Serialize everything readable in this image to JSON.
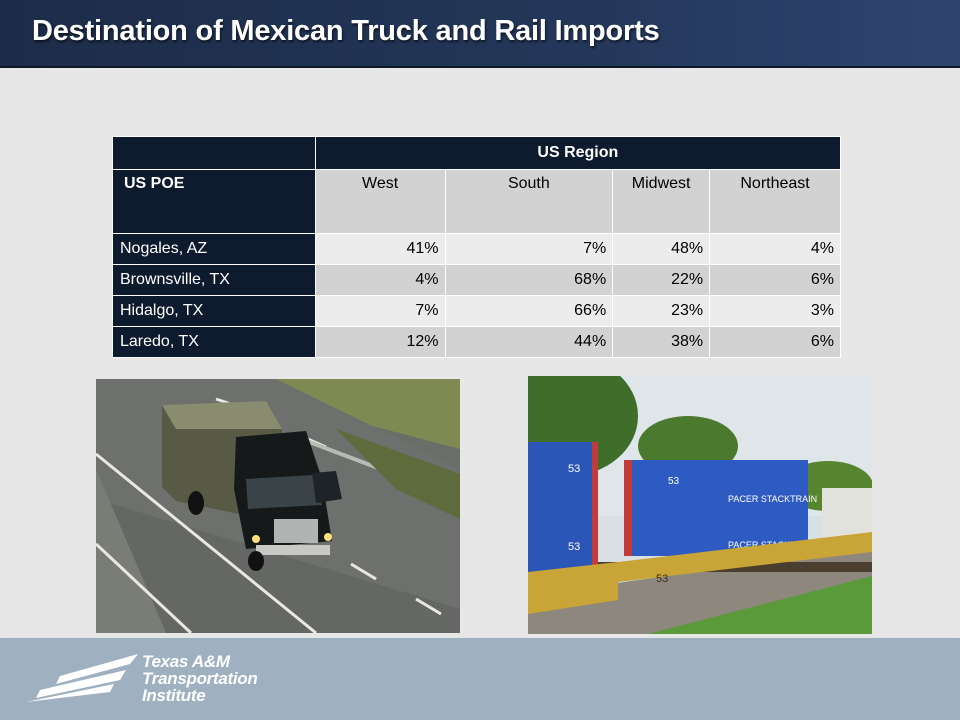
{
  "slide": {
    "title": "Destination of Mexican Truck and Rail Imports"
  },
  "table": {
    "group_header": "US Region",
    "row_header": "US POE",
    "columns": [
      "West",
      "South",
      "Midwest",
      "Northeast"
    ],
    "rows": [
      {
        "poe": "Nogales, AZ",
        "values": [
          "41%",
          "7%",
          "48%",
          "4%"
        ]
      },
      {
        "poe": "Brownsville, TX",
        "values": [
          "4%",
          "68%",
          "22%",
          "6%"
        ]
      },
      {
        "poe": "Hidalgo, TX",
        "values": [
          "7%",
          "66%",
          "23%",
          "3%"
        ]
      },
      {
        "poe": "Laredo, TX",
        "values": [
          "12%",
          "44%",
          "38%",
          "6%"
        ]
      }
    ]
  },
  "photos": {
    "left": "truck-photo",
    "right": "rail-container-photo"
  },
  "footer": {
    "logo_lines": [
      "Texas A&M",
      "Transportation",
      "Institute"
    ]
  },
  "colors": {
    "title_bar": "#24375a",
    "table_header": "#0e1a2e",
    "footer": "#9fb0c0"
  }
}
